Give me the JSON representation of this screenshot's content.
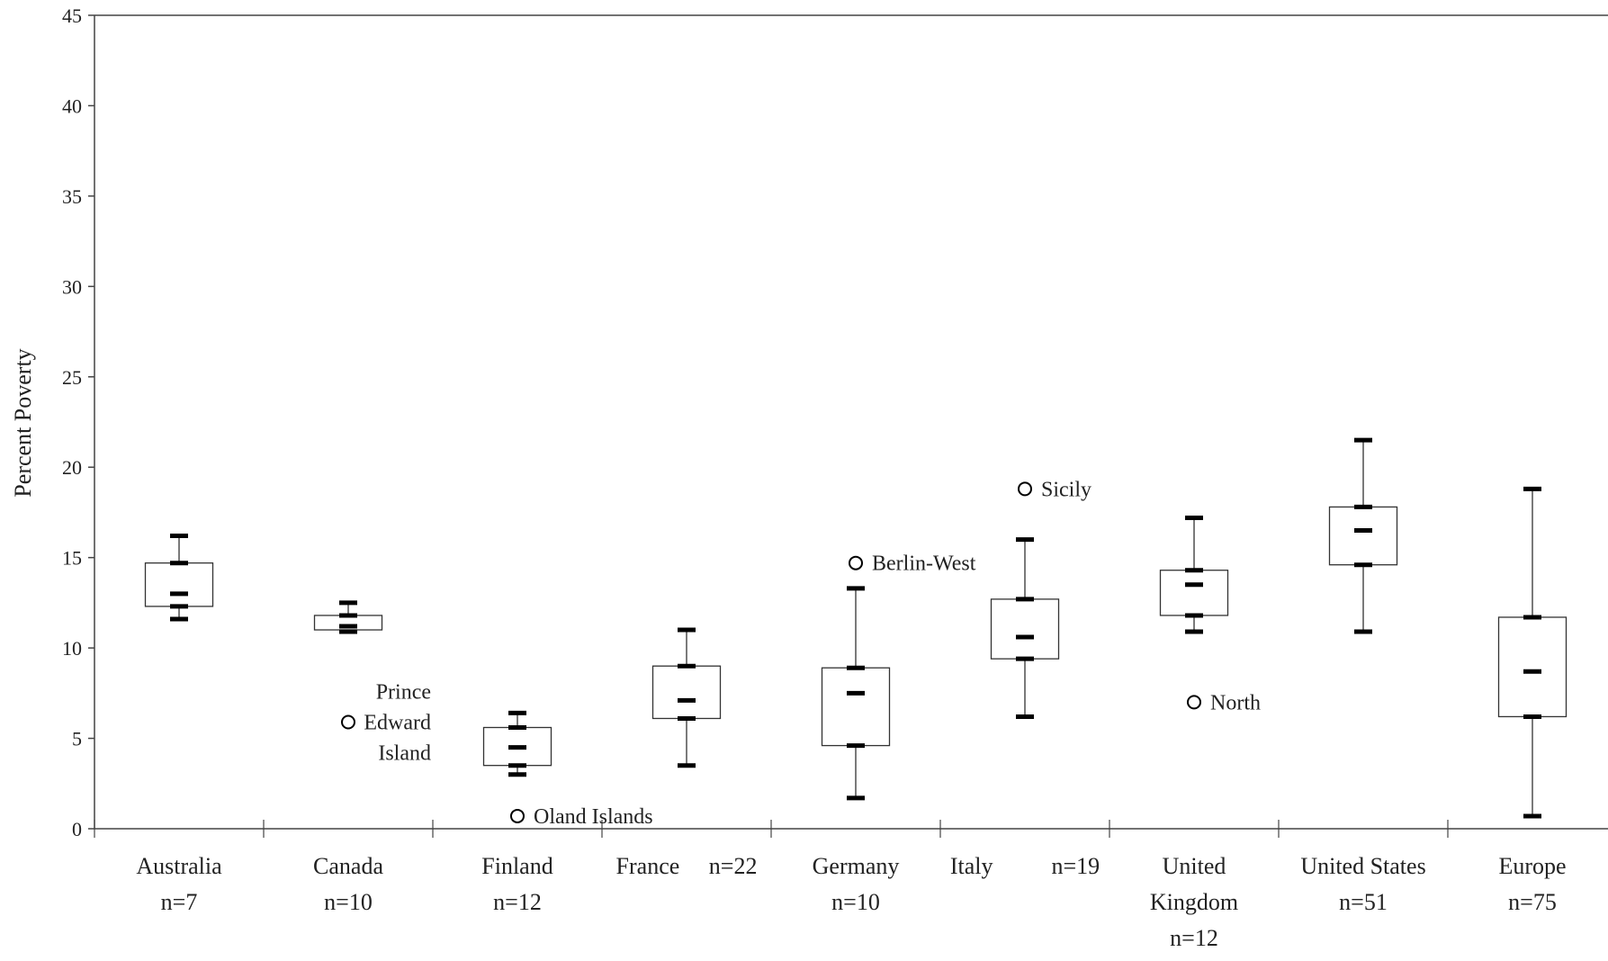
{
  "chart_data": {
    "type": "boxplot",
    "ylabel": "Percent Poverty",
    "ylim": [
      0,
      45
    ],
    "yticks": [
      0,
      5,
      10,
      15,
      20,
      25,
      30,
      35,
      40,
      45
    ],
    "grid": false,
    "legend": "none",
    "categories": [
      {
        "name_lines": [
          "Australia",
          "n=7"
        ],
        "min": 11.6,
        "q1": 12.3,
        "median": 13.0,
        "q3": 14.7,
        "max": 16.2,
        "marks": [
          11.6,
          12.3,
          13.0,
          14.7,
          16.2
        ],
        "outliers": []
      },
      {
        "name_lines": [
          "Canada",
          "n=10"
        ],
        "min": 10.9,
        "q1": 11.0,
        "median": 11.2,
        "q3": 11.8,
        "max": 12.5,
        "marks": [
          10.9,
          11.2,
          11.8,
          12.5
        ],
        "outliers": [
          {
            "value": 5.9,
            "label_lines": [
              "Prince",
              "Edward",
              "Island"
            ]
          }
        ]
      },
      {
        "name_lines": [
          "Finland",
          "n=12"
        ],
        "min": 3.0,
        "q1": 3.5,
        "median": 4.5,
        "q3": 5.6,
        "max": 6.4,
        "marks": [
          3.0,
          3.5,
          4.5,
          5.6,
          6.4
        ],
        "outliers": [
          {
            "value": 0.7,
            "label_lines": [
              "Oland Islands"
            ]
          }
        ]
      },
      {
        "name_lines": [
          "France     n=22"
        ],
        "min": 3.5,
        "q1": 6.1,
        "median": 7.1,
        "q3": 9.0,
        "max": 11.0,
        "marks": [
          3.5,
          6.1,
          7.1,
          9.0,
          11.0
        ],
        "outliers": []
      },
      {
        "name_lines": [
          "Germany",
          "n=10"
        ],
        "min": 1.7,
        "q1": 4.6,
        "median": 7.5,
        "q3": 8.9,
        "max": 13.3,
        "marks": [
          1.7,
          4.6,
          7.5,
          8.9,
          13.3
        ],
        "outliers": [
          {
            "value": 14.7,
            "label_lines": [
              "Berlin-West"
            ]
          }
        ]
      },
      {
        "name_lines": [
          "Italy          n=19"
        ],
        "min": 6.2,
        "q1": 9.4,
        "median": 10.6,
        "q3": 12.7,
        "max": 16.0,
        "marks": [
          6.2,
          9.4,
          10.6,
          12.7,
          16.0
        ],
        "outliers": [
          {
            "value": 18.8,
            "label_lines": [
              "Sicily"
            ]
          }
        ]
      },
      {
        "name_lines": [
          "United",
          "Kingdom",
          "n=12"
        ],
        "min": 10.9,
        "q1": 11.8,
        "median": 13.5,
        "q3": 14.3,
        "max": 17.2,
        "marks": [
          10.9,
          11.8,
          13.5,
          14.3,
          17.2
        ],
        "outliers": [
          {
            "value": 7.0,
            "label_lines": [
              "North"
            ]
          }
        ]
      },
      {
        "name_lines": [
          "United States",
          "n=51"
        ],
        "min": 10.9,
        "q1": 14.6,
        "median": 16.5,
        "q3": 17.8,
        "max": 21.5,
        "marks": [
          10.9,
          14.6,
          16.5,
          17.8,
          21.5
        ],
        "outliers": []
      },
      {
        "name_lines": [
          "Europe",
          "n=75"
        ],
        "min": 0.7,
        "q1": 6.2,
        "median": 8.7,
        "q3": 11.7,
        "max": 18.8,
        "marks": [
          0.7,
          6.2,
          8.7,
          11.7,
          18.8
        ],
        "outliers": []
      }
    ]
  }
}
